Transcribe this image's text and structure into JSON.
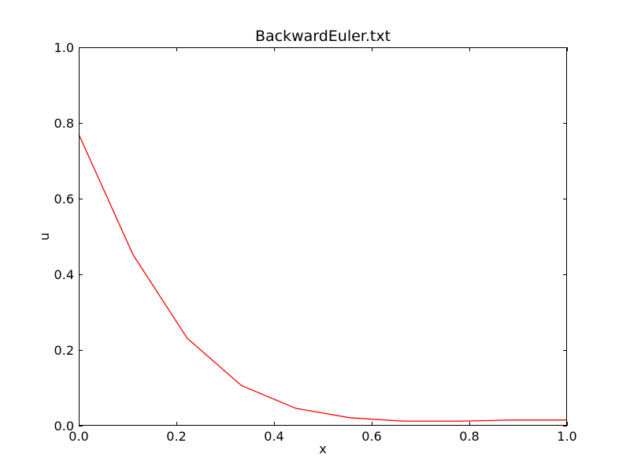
{
  "chart_data": {
    "type": "line",
    "title": "BackwardEuler.txt",
    "xlabel": "x",
    "ylabel": "u",
    "xlim": [
      0.0,
      1.0
    ],
    "ylim": [
      0.0,
      1.0
    ],
    "xticks": [
      "0.0",
      "0.2",
      "0.4",
      "0.6",
      "0.8",
      "1.0"
    ],
    "yticks": [
      "0.0",
      "0.2",
      "0.4",
      "0.6",
      "0.8",
      "1.0"
    ],
    "grid": false,
    "series": [
      {
        "color": "#ff0000",
        "x": [
          0.0,
          0.1111,
          0.2222,
          0.3333,
          0.4444,
          0.5556,
          0.6667,
          0.7778,
          0.8889,
          1.0
        ],
        "y": [
          0.77,
          0.452,
          0.231,
          0.106,
          0.046,
          0.021,
          0.012,
          0.012,
          0.015,
          0.015
        ]
      }
    ]
  }
}
